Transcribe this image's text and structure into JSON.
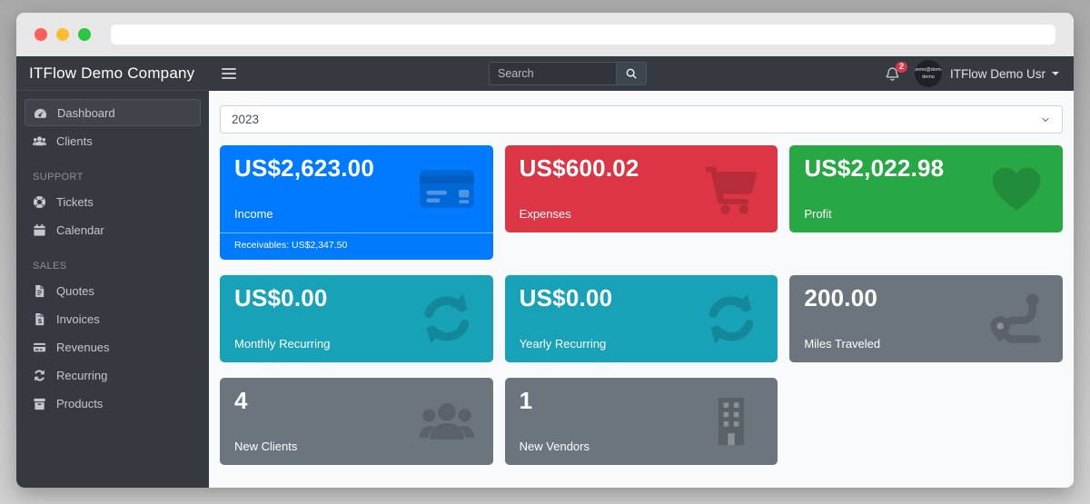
{
  "window_controls": {
    "buttons": [
      {
        "name": "close",
        "color": "#ff5f57"
      },
      {
        "name": "minimize",
        "color": "#febc2e"
      },
      {
        "name": "zoom",
        "color": "#28c840"
      }
    ],
    "url": ""
  },
  "sidebar": {
    "brand": "ITFlow Demo Company",
    "sections": [
      {
        "header": "",
        "items": [
          {
            "label": "Dashboard",
            "icon": "tachometer-icon",
            "active": true
          },
          {
            "label": "Clients",
            "icon": "users-sm-icon",
            "active": false
          }
        ]
      },
      {
        "header": "SUPPORT",
        "items": [
          {
            "label": "Tickets",
            "icon": "life-ring-icon",
            "active": false
          },
          {
            "label": "Calendar",
            "icon": "calendar-icon",
            "active": false
          }
        ]
      },
      {
        "header": "SALES",
        "items": [
          {
            "label": "Quotes",
            "icon": "file-alt-icon",
            "active": false
          },
          {
            "label": "Invoices",
            "icon": "file-invoice-icon",
            "active": false
          },
          {
            "label": "Revenues",
            "icon": "credit-card-sm-icon",
            "active": false
          },
          {
            "label": "Recurring",
            "icon": "sync-sm-icon",
            "active": false
          },
          {
            "label": "Products",
            "icon": "box-icon",
            "active": false
          }
        ]
      }
    ]
  },
  "navbar": {
    "search": {
      "placeholder": "Search"
    },
    "notifications": {
      "count": "2"
    },
    "user": {
      "name": "ITFlow Demo Usr",
      "avatar_line1": "demo@demo",
      "avatar_line2": "demo"
    }
  },
  "filters": {
    "year": "2023"
  },
  "cards": [
    {
      "value": "US$2,623.00",
      "label": "Income",
      "color": "#007bff",
      "icon": "credit-card-icon",
      "footer": "Receivables: US$2,347.50"
    },
    {
      "value": "US$600.02",
      "label": "Expenses",
      "color": "#dc3545",
      "icon": "shopping-cart-icon"
    },
    {
      "value": "US$2,022.98",
      "label": "Profit",
      "color": "#28a745",
      "icon": "heart-icon"
    },
    {
      "value": "US$0.00",
      "label": "Monthly Recurring",
      "color": "#17a2b8",
      "icon": "sync-icon"
    },
    {
      "value": "US$0.00",
      "label": "Yearly Recurring",
      "color": "#17a2b8",
      "icon": "sync-icon"
    },
    {
      "value": "200.00",
      "label": "Miles Traveled",
      "color": "#6c757d",
      "icon": "route-icon"
    },
    {
      "value": "4",
      "label": "New Clients",
      "color": "#6c757d",
      "icon": "users-icon"
    },
    {
      "value": "1",
      "label": "New Vendors",
      "color": "#6c757d",
      "icon": "building-icon"
    }
  ]
}
